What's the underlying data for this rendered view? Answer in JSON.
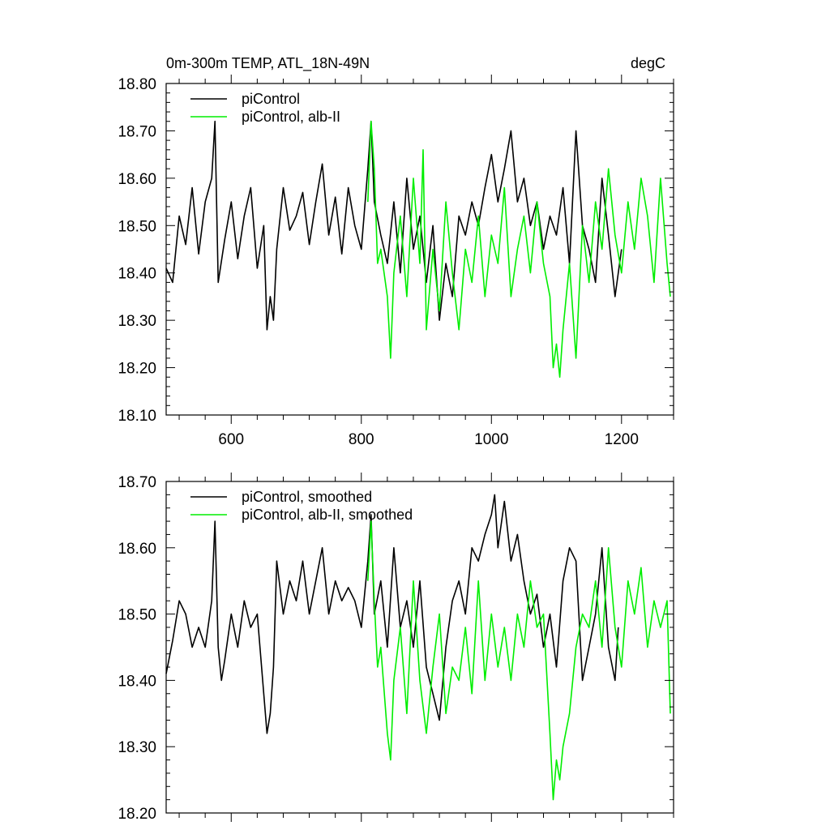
{
  "chart_data": [
    {
      "type": "line",
      "title_left": "0m-300m TEMP, ATL_18N-49N",
      "title_right": "degC",
      "xlim": [
        500,
        1280
      ],
      "ylim": [
        18.1,
        18.8
      ],
      "x_ticks": [
        600,
        800,
        1000,
        1200
      ],
      "x_tick_labels": [
        "600",
        "800",
        "1000",
        "1200"
      ],
      "y_ticks": [
        18.1,
        18.2,
        18.3,
        18.4,
        18.5,
        18.6,
        18.7,
        18.8
      ],
      "y_tick_labels": [
        "18.10",
        "18.20",
        "18.30",
        "18.40",
        "18.50",
        "18.60",
        "18.70",
        "18.80"
      ],
      "legend_position": "top-left",
      "series": [
        {
          "name": "piControl",
          "color": "#000000",
          "x": [
            500,
            510,
            520,
            530,
            540,
            550,
            560,
            570,
            575,
            580,
            590,
            600,
            610,
            620,
            630,
            640,
            650,
            655,
            660,
            665,
            670,
            680,
            690,
            700,
            710,
            720,
            730,
            740,
            750,
            760,
            770,
            780,
            790,
            800,
            810,
            815,
            820,
            830,
            840,
            850,
            860,
            870,
            880,
            890,
            900,
            910,
            920,
            930,
            940,
            950,
            960,
            970,
            980,
            990,
            1000,
            1010,
            1020,
            1030,
            1040,
            1050,
            1060,
            1070,
            1080,
            1090,
            1100,
            1110,
            1120,
            1130,
            1140,
            1150,
            1160,
            1170,
            1180,
            1190,
            1200
          ],
          "values": [
            18.41,
            18.38,
            18.52,
            18.46,
            18.58,
            18.44,
            18.55,
            18.6,
            18.72,
            18.38,
            18.47,
            18.55,
            18.43,
            18.52,
            18.58,
            18.41,
            18.5,
            18.28,
            18.35,
            18.3,
            18.45,
            18.58,
            18.49,
            18.52,
            18.57,
            18.46,
            18.55,
            18.63,
            18.48,
            18.56,
            18.44,
            18.58,
            18.5,
            18.45,
            18.62,
            18.72,
            18.55,
            18.48,
            18.42,
            18.55,
            18.4,
            18.6,
            18.45,
            18.52,
            18.38,
            18.5,
            18.3,
            18.42,
            18.35,
            18.52,
            18.48,
            18.55,
            18.5,
            18.58,
            18.65,
            18.55,
            18.62,
            18.7,
            18.55,
            18.6,
            18.5,
            18.55,
            18.45,
            18.52,
            18.48,
            18.58,
            18.42,
            18.7,
            18.5,
            18.45,
            18.38,
            18.6,
            18.48,
            18.35,
            18.45
          ]
        },
        {
          "name": "piControl, alb-II",
          "color": "#00ee00",
          "x": [
            810,
            815,
            820,
            825,
            830,
            840,
            845,
            850,
            860,
            870,
            880,
            890,
            895,
            900,
            910,
            920,
            930,
            940,
            950,
            960,
            970,
            980,
            990,
            1000,
            1010,
            1020,
            1030,
            1040,
            1050,
            1060,
            1070,
            1080,
            1090,
            1095,
            1100,
            1105,
            1110,
            1120,
            1130,
            1140,
            1150,
            1160,
            1170,
            1180,
            1190,
            1200,
            1210,
            1220,
            1230,
            1240,
            1250,
            1260,
            1270,
            1275
          ],
          "values": [
            18.55,
            18.72,
            18.62,
            18.42,
            18.45,
            18.35,
            18.22,
            18.4,
            18.52,
            18.35,
            18.6,
            18.42,
            18.66,
            18.28,
            18.45,
            18.32,
            18.55,
            18.4,
            18.28,
            18.45,
            18.38,
            18.52,
            18.35,
            18.48,
            18.42,
            18.58,
            18.35,
            18.45,
            18.52,
            18.4,
            18.55,
            18.42,
            18.35,
            18.2,
            18.25,
            18.18,
            18.28,
            18.42,
            18.22,
            18.5,
            18.38,
            18.55,
            18.45,
            18.62,
            18.48,
            18.4,
            18.55,
            18.45,
            18.6,
            18.52,
            18.38,
            18.6,
            18.42,
            18.35
          ]
        }
      ]
    },
    {
      "type": "line",
      "xlim": [
        500,
        1280
      ],
      "ylim": [
        18.2,
        18.7
      ],
      "x_ticks": [
        600,
        800,
        1000,
        1200
      ],
      "y_ticks": [
        18.2,
        18.3,
        18.4,
        18.5,
        18.6,
        18.7
      ],
      "y_tick_labels": [
        "18.20",
        "18.30",
        "18.40",
        "18.50",
        "18.60",
        "18.70"
      ],
      "legend_position": "top-left",
      "series": [
        {
          "name": "piControl, smoothed",
          "color": "#000000",
          "x": [
            500,
            510,
            520,
            530,
            540,
            550,
            560,
            570,
            575,
            580,
            585,
            590,
            600,
            610,
            620,
            630,
            640,
            650,
            655,
            660,
            665,
            670,
            680,
            690,
            700,
            710,
            720,
            730,
            740,
            750,
            760,
            770,
            780,
            790,
            800,
            810,
            815,
            820,
            830,
            840,
            850,
            860,
            870,
            880,
            890,
            900,
            910,
            920,
            930,
            940,
            950,
            960,
            970,
            980,
            990,
            1000,
            1005,
            1010,
            1020,
            1030,
            1040,
            1050,
            1060,
            1070,
            1080,
            1090,
            1100,
            1110,
            1120,
            1130,
            1140,
            1150,
            1160,
            1170,
            1180,
            1190,
            1195
          ],
          "values": [
            18.41,
            18.46,
            18.52,
            18.5,
            18.45,
            18.48,
            18.45,
            18.52,
            18.64,
            18.45,
            18.4,
            18.43,
            18.5,
            18.45,
            18.52,
            18.48,
            18.5,
            18.38,
            18.32,
            18.35,
            18.42,
            18.58,
            18.5,
            18.55,
            18.52,
            18.58,
            18.5,
            18.55,
            18.6,
            18.5,
            18.55,
            18.52,
            18.54,
            18.52,
            18.48,
            18.58,
            18.65,
            18.5,
            18.55,
            18.45,
            18.6,
            18.48,
            18.52,
            18.45,
            18.55,
            18.42,
            18.38,
            18.34,
            18.45,
            18.52,
            18.55,
            18.5,
            18.6,
            18.58,
            18.62,
            18.65,
            18.68,
            18.6,
            18.67,
            18.58,
            18.62,
            18.55,
            18.5,
            18.53,
            18.45,
            18.5,
            18.42,
            18.55,
            18.6,
            18.58,
            18.4,
            18.45,
            18.5,
            18.6,
            18.45,
            18.4,
            18.48
          ]
        },
        {
          "name": "piControl, alb-II, smoothed",
          "color": "#00ee00",
          "x": [
            810,
            815,
            820,
            825,
            830,
            840,
            845,
            850,
            860,
            870,
            880,
            890,
            900,
            910,
            920,
            930,
            940,
            950,
            960,
            970,
            980,
            990,
            1000,
            1010,
            1020,
            1030,
            1040,
            1050,
            1060,
            1070,
            1080,
            1090,
            1095,
            1100,
            1105,
            1110,
            1120,
            1130,
            1140,
            1150,
            1160,
            1170,
            1180,
            1190,
            1200,
            1210,
            1220,
            1230,
            1240,
            1250,
            1260,
            1270,
            1275
          ],
          "values": [
            18.55,
            18.64,
            18.52,
            18.42,
            18.45,
            18.32,
            18.28,
            18.4,
            18.48,
            18.35,
            18.55,
            18.4,
            18.32,
            18.42,
            18.5,
            18.35,
            18.42,
            18.4,
            18.48,
            18.38,
            18.55,
            18.4,
            18.5,
            18.42,
            18.48,
            18.4,
            18.5,
            18.45,
            18.55,
            18.48,
            18.5,
            18.32,
            18.22,
            18.28,
            18.25,
            18.3,
            18.35,
            18.45,
            18.5,
            18.48,
            18.55,
            18.45,
            18.6,
            18.48,
            18.42,
            18.55,
            18.5,
            18.57,
            18.45,
            18.52,
            18.48,
            18.52,
            18.35
          ]
        }
      ]
    }
  ]
}
